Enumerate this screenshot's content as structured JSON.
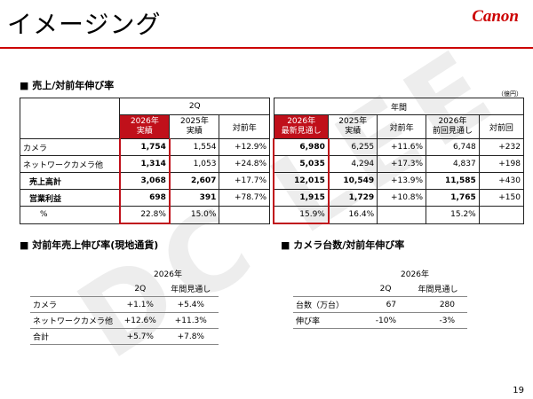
{
  "title": "イメージング",
  "logo": "Canon",
  "watermark": "DC LEE",
  "section1": {
    "heading": "■ 売上/対前年伸び率",
    "unit": "（億円）",
    "group_2q": "2Q",
    "group_year": "年間",
    "cols": [
      "2026年\n実績",
      "2025年\n実績",
      "対前年",
      "2026年\n最新見通し",
      "2025年\n実績",
      "対前年",
      "2026年\n前回見通し",
      "対前回"
    ],
    "rows": [
      {
        "label": "カメラ",
        "bold": false,
        "values": [
          "1,754",
          "1,554",
          "+12.9%",
          "6,980",
          "6,255",
          "+11.6%",
          "6,748",
          "+232"
        ]
      },
      {
        "label": "ネットワークカメラ他",
        "bold": false,
        "values": [
          "1,314",
          "1,053",
          "+24.8%",
          "5,035",
          "4,294",
          "+17.3%",
          "4,837",
          "+198"
        ]
      },
      {
        "label": "売上高計",
        "bold": true,
        "values": [
          "3,068",
          "2,607",
          "+17.7%",
          "12,015",
          "10,549",
          "+13.9%",
          "11,585",
          "+430"
        ]
      },
      {
        "label": "営業利益",
        "bold": true,
        "values": [
          "698",
          "391",
          "+78.7%",
          "1,915",
          "1,729",
          "+10.8%",
          "1,765",
          "+150"
        ]
      },
      {
        "label": "%",
        "bold": false,
        "values": [
          "22.8%",
          "15.0%",
          "",
          "15.9%",
          "16.4%",
          "",
          "15.2%",
          ""
        ]
      }
    ]
  },
  "section2": {
    "heading": "■ 対前年売上伸び率(現地通貨)",
    "year": "2026年",
    "cols": [
      "2Q",
      "年間見通し"
    ],
    "rows": [
      {
        "label": "カメラ",
        "values": [
          "+1.1%",
          "+5.4%"
        ]
      },
      {
        "label": "ネットワークカメラ他",
        "values": [
          "+12.6%",
          "+11.3%"
        ]
      },
      {
        "label": "合計",
        "values": [
          "+5.7%",
          "+7.8%"
        ]
      }
    ]
  },
  "section3": {
    "heading": "■ カメラ台数/対前年伸び率",
    "year": "2026年",
    "cols": [
      "2Q",
      "年間見通し"
    ],
    "rows": [
      {
        "label": "台数（万台）",
        "values": [
          "67",
          "280"
        ]
      },
      {
        "label": "伸び率",
        "values": [
          "-10%",
          "-3%"
        ]
      }
    ]
  },
  "page_number": "19"
}
